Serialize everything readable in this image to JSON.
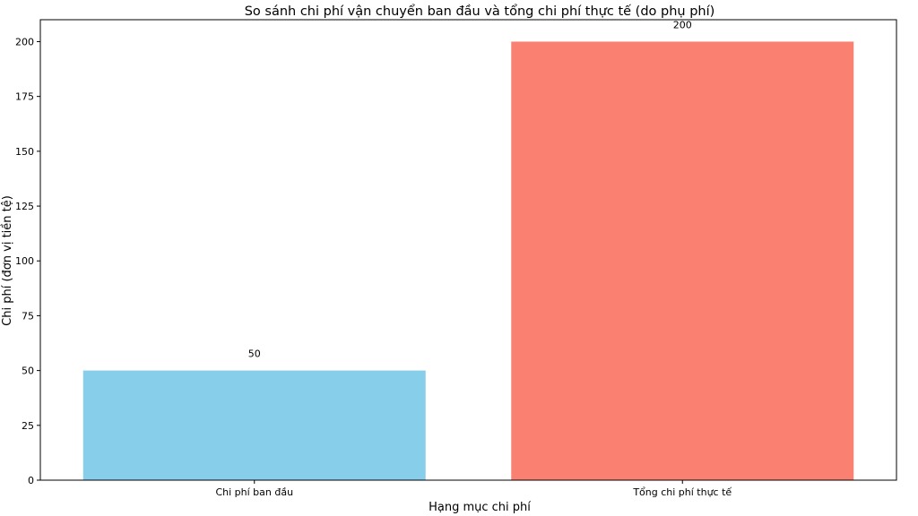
{
  "chart_data": {
    "type": "bar",
    "title": "So sánh chi phí vận chuyển ban đầu và tổng chi phí thực tế (do phụ phí)",
    "xlabel": "Hạng mục chi phí",
    "ylabel": "Chi phí (đơn vị tiền tệ)",
    "categories": [
      "Chi phí ban đầu",
      "Tổng chi phí thực tế"
    ],
    "values": [
      50,
      200
    ],
    "data_labels": [
      "50",
      "200"
    ],
    "colors": [
      "#87CEEB",
      "#FA8072"
    ],
    "ylim": [
      0,
      210
    ],
    "yticks": [
      0,
      25,
      50,
      75,
      100,
      125,
      150,
      175,
      200
    ],
    "grid": false,
    "legend": "none"
  }
}
